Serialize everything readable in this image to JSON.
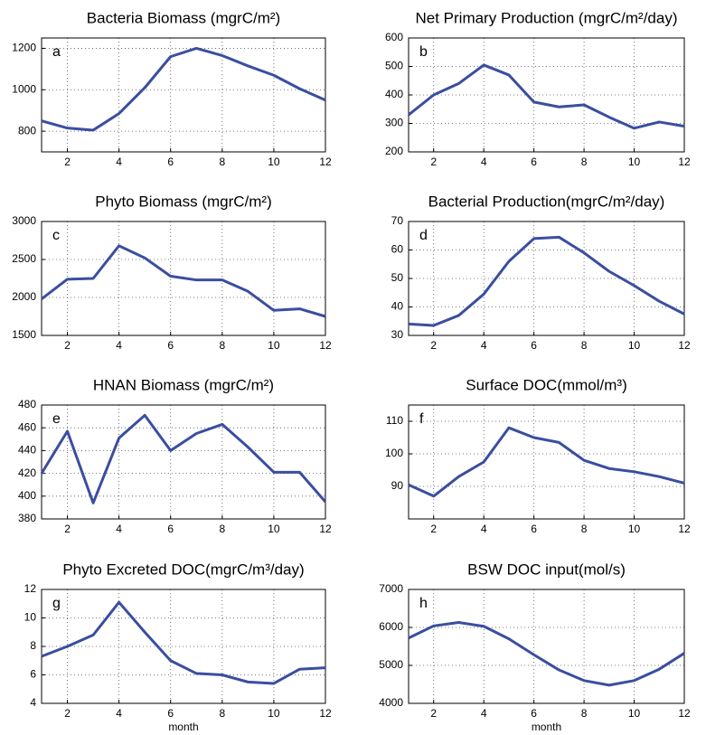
{
  "chart_data": [
    {
      "type": "line",
      "title": "Bacteria Biomass (mgrC/m²)",
      "label": "a",
      "x": [
        1,
        2,
        3,
        4,
        5,
        6,
        7,
        8,
        9,
        10,
        11,
        12
      ],
      "values": [
        850,
        815,
        805,
        885,
        1010,
        1160,
        1200,
        1165,
        1115,
        1070,
        1005,
        950
      ],
      "color": "#3a4ea0",
      "xlim": [
        1,
        12
      ],
      "ylim": [
        700,
        1250
      ],
      "xticks": [
        2,
        4,
        6,
        8,
        10,
        12
      ],
      "yticks": [
        800,
        1000,
        1200
      ],
      "grid": true
    },
    {
      "type": "line",
      "title": "Net Primary Production (mgrC/m²/day)",
      "label": "b",
      "x": [
        1,
        2,
        3,
        4,
        5,
        6,
        7,
        8,
        9,
        10,
        11,
        12
      ],
      "values": [
        330,
        400,
        440,
        505,
        470,
        375,
        358,
        365,
        322,
        283,
        305,
        290
      ],
      "color": "#3a4ea0",
      "xlim": [
        1,
        12
      ],
      "ylim": [
        200,
        600
      ],
      "xticks": [
        2,
        4,
        6,
        8,
        10,
        12
      ],
      "yticks": [
        200,
        300,
        400,
        500,
        600
      ],
      "grid": true
    },
    {
      "type": "line",
      "title": "Phyto Biomass (mgrC/m²)",
      "label": "c",
      "x": [
        1,
        2,
        3,
        4,
        5,
        6,
        7,
        8,
        9,
        10,
        11,
        12
      ],
      "values": [
        1980,
        2240,
        2250,
        2680,
        2520,
        2280,
        2230,
        2230,
        2080,
        1830,
        1850,
        1750
      ],
      "color": "#3a4ea0",
      "xlim": [
        1,
        12
      ],
      "ylim": [
        1500,
        3000
      ],
      "xticks": [
        2,
        4,
        6,
        8,
        10,
        12
      ],
      "yticks": [
        1500,
        2000,
        2500,
        3000
      ],
      "grid": true
    },
    {
      "type": "line",
      "title": "Bacterial Production(mgrC/m²/day)",
      "label": "d",
      "x": [
        1,
        2,
        3,
        4,
        5,
        6,
        7,
        8,
        9,
        10,
        11,
        12
      ],
      "values": [
        34,
        33.5,
        37,
        44.5,
        56,
        64,
        64.5,
        59,
        52.5,
        47.5,
        42,
        37.5
      ],
      "color": "#3a4ea0",
      "xlim": [
        1,
        12
      ],
      "ylim": [
        30,
        70
      ],
      "xticks": [
        2,
        4,
        6,
        8,
        10,
        12
      ],
      "yticks": [
        30,
        40,
        50,
        60,
        70
      ],
      "grid": true
    },
    {
      "type": "line",
      "title": "HNAN Biomass (mgrC/m²)",
      "label": "e",
      "x": [
        1,
        2,
        3,
        4,
        5,
        6,
        7,
        8,
        9,
        10,
        11,
        12
      ],
      "values": [
        420,
        457,
        394,
        451,
        471,
        440,
        455,
        463,
        443,
        421,
        421,
        395
      ],
      "color": "#3a4ea0",
      "xlim": [
        1,
        12
      ],
      "ylim": [
        380,
        480
      ],
      "xticks": [
        2,
        4,
        6,
        8,
        10,
        12
      ],
      "yticks": [
        380,
        400,
        420,
        440,
        460,
        480
      ],
      "grid": true
    },
    {
      "type": "line",
      "title": "Surface DOC(mmol/m³)",
      "label": "f",
      "x": [
        1,
        2,
        3,
        4,
        5,
        6,
        7,
        8,
        9,
        10,
        11,
        12
      ],
      "values": [
        90.5,
        87,
        93,
        97.5,
        108,
        105,
        103.5,
        98,
        95.5,
        94.5,
        93,
        91
      ],
      "color": "#3a4ea0",
      "xlim": [
        1,
        12
      ],
      "ylim": [
        80,
        115
      ],
      "xticks": [
        2,
        4,
        6,
        8,
        10,
        12
      ],
      "yticks": [
        90,
        100,
        110
      ],
      "grid": true
    },
    {
      "type": "line",
      "title": "Phyto Excreted DOC(mgrC/m³/day)",
      "label": "g",
      "xlabel": "month",
      "x": [
        1,
        2,
        3,
        4,
        5,
        6,
        7,
        8,
        9,
        10,
        11,
        12
      ],
      "values": [
        7.3,
        8,
        8.8,
        11.1,
        9,
        7,
        6.1,
        6,
        5.5,
        5.4,
        6.4,
        6.5
      ],
      "color": "#3a4ea0",
      "xlim": [
        1,
        12
      ],
      "ylim": [
        4,
        12
      ],
      "xticks": [
        2,
        4,
        6,
        8,
        10,
        12
      ],
      "yticks": [
        4,
        6,
        8,
        10,
        12
      ],
      "grid": true
    },
    {
      "type": "line",
      "title": "BSW DOC input(mol/s)",
      "label": "h",
      "xlabel": "month",
      "x": [
        1,
        2,
        3,
        4,
        5,
        6,
        7,
        8,
        9,
        10,
        11,
        12
      ],
      "values": [
        5720,
        6040,
        6130,
        6030,
        5700,
        5280,
        4880,
        4600,
        4480,
        4600,
        4900,
        5320
      ],
      "color": "#3a4ea0",
      "xlim": [
        1,
        12
      ],
      "ylim": [
        4000,
        7000
      ],
      "xticks": [
        2,
        4,
        6,
        8,
        10,
        12
      ],
      "yticks": [
        4000,
        5000,
        6000,
        7000
      ],
      "grid": true
    }
  ]
}
